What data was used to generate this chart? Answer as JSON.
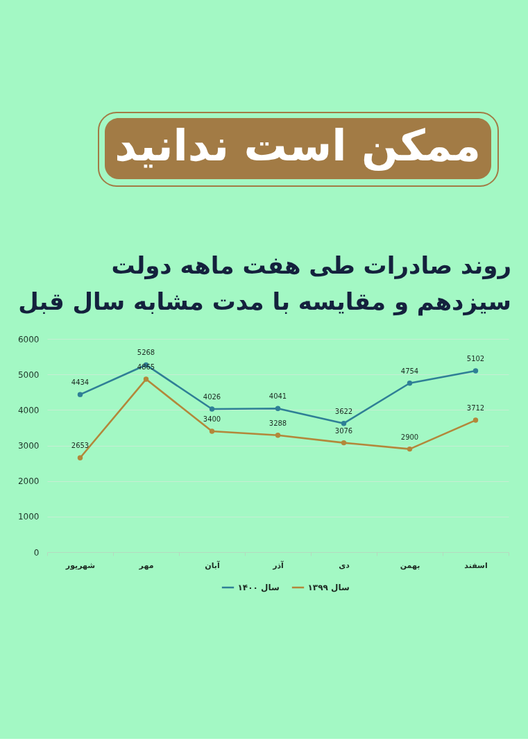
{
  "chart_data": {
    "type": "line",
    "title": "ممکن است ندانید",
    "subtitle": "روند صادرات طی هفت ماهه دولت\nسیزدهم و مقایسه با مدت مشابه سال قبل",
    "categories": [
      "شهریور",
      "مهر",
      "آبان",
      "آذر",
      "دی",
      "بهمن",
      "اسفند"
    ],
    "series": [
      {
        "name": "سال ۱۴۰۰",
        "color": "#2f7f96",
        "values": [
          4434,
          5268,
          4026,
          4041,
          3622,
          4754,
          5102
        ]
      },
      {
        "name": "سال ۱۳۹۹",
        "color": "#b3873a",
        "values": [
          2653,
          4865,
          3400,
          3288,
          3076,
          2900,
          3712
        ]
      }
    ],
    "ylim": [
      0,
      6000
    ],
    "yticks": [
      0,
      1000,
      2000,
      3000,
      4000,
      5000,
      6000
    ],
    "grid": "y",
    "legend": "bottom",
    "marker": "circle",
    "line_style": "solid",
    "data_labels": true
  }
}
